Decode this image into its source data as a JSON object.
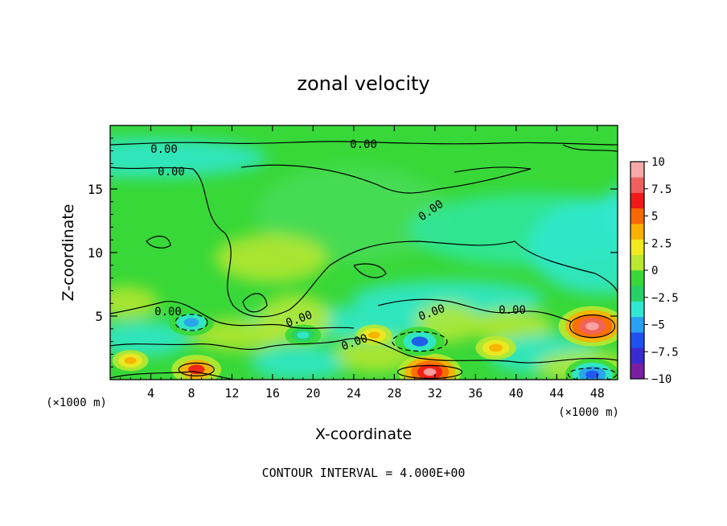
{
  "chart_data": {
    "type": "heatmap",
    "title": "zonal velocity",
    "xlabel": "X-coordinate",
    "ylabel": "Z-coordinate",
    "x_unit_left": "(×1000 m)",
    "x_unit_right": "(×1000 m)",
    "footer": "CONTOUR INTERVAL = 4.000E+00",
    "xlim": [
      0,
      50
    ],
    "ylim": [
      0,
      20
    ],
    "x_ticks": [
      "4",
      "8",
      "12",
      "16",
      "20",
      "24",
      "28",
      "32",
      "36",
      "40",
      "44",
      "48"
    ],
    "y_ticks": [
      "5",
      "10",
      "15"
    ],
    "colorbar": {
      "range": [
        -10,
        10
      ],
      "tick_labels": [
        "10",
        "7.5",
        "5",
        "2.5",
        "0",
        "−2.5",
        "−5",
        "−7.5",
        "−10"
      ],
      "colors": [
        "#7a1fa2",
        "#3a2bd0",
        "#2050f0",
        "#2aa0f0",
        "#30e8d0",
        "#28d068",
        "#38d838",
        "#b8e830",
        "#f0e820",
        "#f8b000",
        "#f86800",
        "#f01818",
        "#f06060",
        "#f8a8a8"
      ]
    },
    "contour_labels": [
      "0.00",
      "0.00",
      "0.00",
      "0.00",
      "0.00",
      "0.00",
      "0.00",
      "0.00",
      "0.00",
      "0.00"
    ],
    "features": [
      {
        "x": 8.5,
        "z": 0.8,
        "value": 6
      },
      {
        "x": 31.5,
        "z": 0.6,
        "value": 9
      },
      {
        "x": 47.5,
        "z": 4.2,
        "value": 10
      },
      {
        "x": 47.5,
        "z": 0.4,
        "value": -7
      },
      {
        "x": 30.5,
        "z": 3.0,
        "value": -6
      },
      {
        "x": 8.0,
        "z": 4.5,
        "value": -5
      },
      {
        "x": 19.0,
        "z": 3.5,
        "value": -3
      },
      {
        "x": 26.0,
        "z": 3.5,
        "value": 3
      },
      {
        "x": 38.0,
        "z": 2.5,
        "value": 4
      },
      {
        "x": 2.0,
        "z": 1.5,
        "value": 3
      }
    ]
  }
}
